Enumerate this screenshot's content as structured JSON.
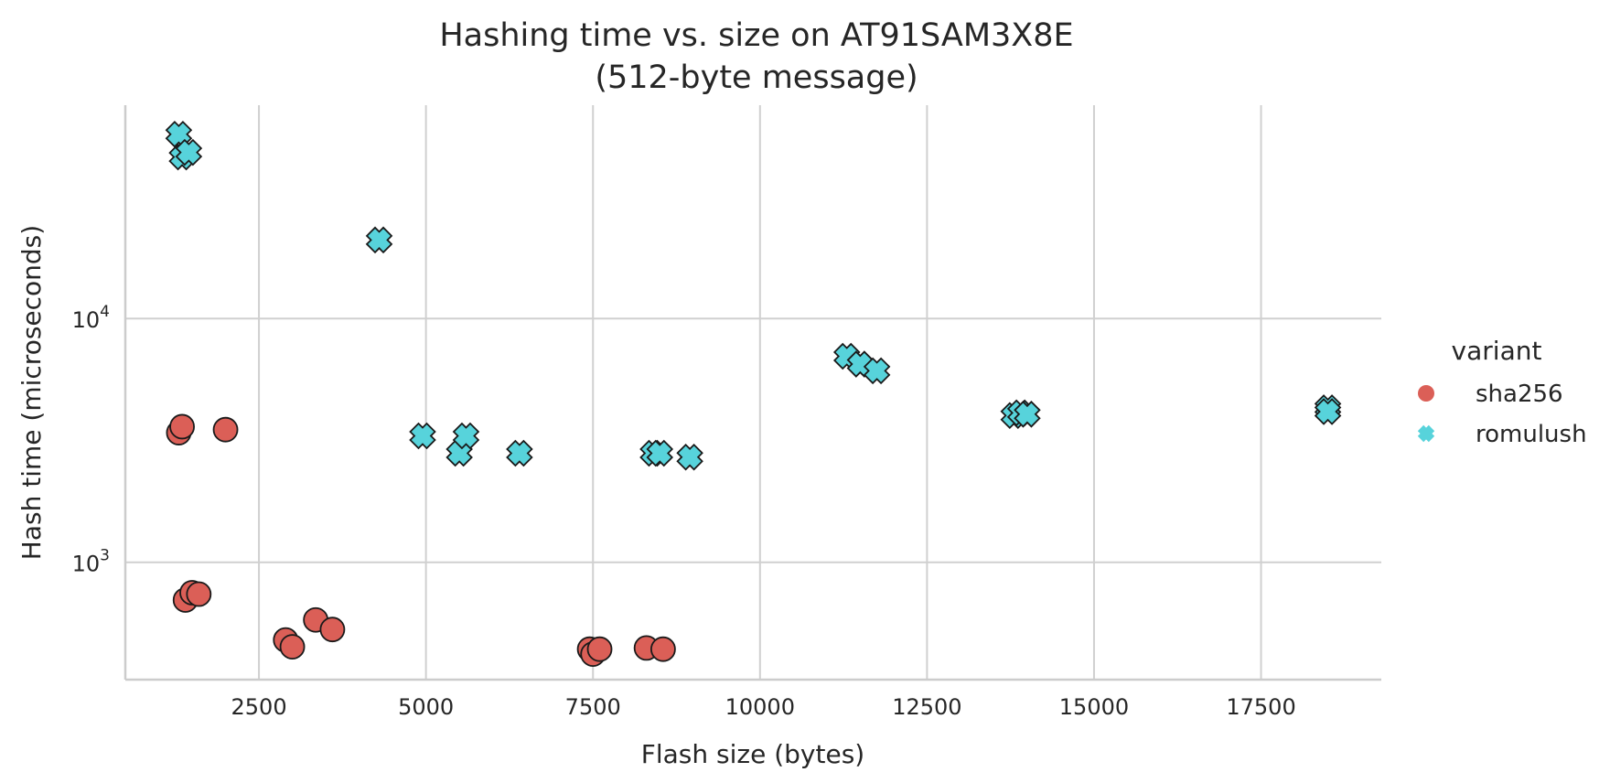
{
  "chart_data": {
    "type": "scatter",
    "title_line1": "Hashing time vs. size on AT91SAM3X8E",
    "title_line2": "(512-byte message)",
    "xlabel": "Flash size (bytes)",
    "ylabel": "Hash time (microseconds)",
    "xlim": [
      500,
      19300
    ],
    "ylim": [
      330,
      75000
    ],
    "yscale": "log",
    "x_ticks": [
      2500,
      5000,
      7500,
      10000,
      12500,
      15000,
      17500
    ],
    "x_tick_labels": [
      "2500",
      "5000",
      "7500",
      "10000",
      "12500",
      "15000",
      "17500"
    ],
    "y_ticks": [
      {
        "value": 1000,
        "base": "10",
        "exp": "3"
      },
      {
        "value": 10000,
        "base": "10",
        "exp": "4"
      }
    ],
    "grid": true,
    "legend": {
      "title": "variant",
      "placement": "right",
      "entries": [
        {
          "label": "sha256",
          "marker": "circle",
          "color": "#DB5F57"
        },
        {
          "label": "romulush",
          "marker": "x",
          "color": "#57D3DB"
        }
      ]
    },
    "series": [
      {
        "name": "sha256",
        "marker": "circle",
        "color": "#DB5F57",
        "points": [
          {
            "x": 1300,
            "y": 3400
          },
          {
            "x": 1350,
            "y": 3600
          },
          {
            "x": 2000,
            "y": 3500
          },
          {
            "x": 1400,
            "y": 700
          },
          {
            "x": 1500,
            "y": 750
          },
          {
            "x": 1600,
            "y": 740
          },
          {
            "x": 2900,
            "y": 480
          },
          {
            "x": 3000,
            "y": 450
          },
          {
            "x": 3350,
            "y": 580
          },
          {
            "x": 3600,
            "y": 530
          },
          {
            "x": 7450,
            "y": 440
          },
          {
            "x": 7500,
            "y": 420
          },
          {
            "x": 7600,
            "y": 440
          },
          {
            "x": 8300,
            "y": 445
          },
          {
            "x": 8550,
            "y": 440
          }
        ]
      },
      {
        "name": "romulush",
        "marker": "x",
        "color": "#57D3DB",
        "points": [
          {
            "x": 1300,
            "y": 57000
          },
          {
            "x": 1350,
            "y": 46000
          },
          {
            "x": 1450,
            "y": 48000
          },
          {
            "x": 4300,
            "y": 21000
          },
          {
            "x": 4950,
            "y": 3300
          },
          {
            "x": 5500,
            "y": 2800
          },
          {
            "x": 5600,
            "y": 3300
          },
          {
            "x": 6400,
            "y": 2800
          },
          {
            "x": 8400,
            "y": 2800
          },
          {
            "x": 8500,
            "y": 2800
          },
          {
            "x": 8950,
            "y": 2700
          },
          {
            "x": 11300,
            "y": 7000
          },
          {
            "x": 11500,
            "y": 6500
          },
          {
            "x": 11750,
            "y": 6100
          },
          {
            "x": 13800,
            "y": 4000
          },
          {
            "x": 13900,
            "y": 4100
          },
          {
            "x": 14000,
            "y": 4050
          },
          {
            "x": 18500,
            "y": 4300
          },
          {
            "x": 18500,
            "y": 4150
          }
        ]
      }
    ]
  }
}
